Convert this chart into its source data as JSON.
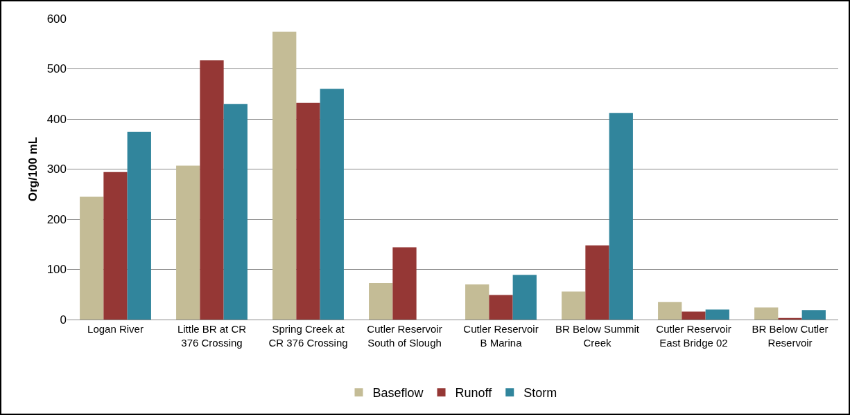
{
  "chart_data": {
    "type": "bar",
    "ylabel": "Org/100 mL",
    "categories": [
      "Logan River",
      "Little BR at CR 376 Crossing",
      "Spring Creek at CR 376 Crossing",
      "Cutler Reservoir South of Slough",
      "Cutler Reservoir B Marina",
      "BR Below Summit Creek",
      "Cutler Reservoir East Bridge 02",
      "BR Below Cutler Reservoir"
    ],
    "series": [
      {
        "name": "Baseflow",
        "color": "#c4bc96",
        "values": [
          245,
          307,
          574,
          73,
          70,
          56,
          35,
          24
        ]
      },
      {
        "name": "Runoff",
        "color": "#953735",
        "values": [
          294,
          517,
          432,
          144,
          49,
          148,
          16,
          3
        ]
      },
      {
        "name": "Storm",
        "color": "#31859c",
        "values": [
          374,
          430,
          460,
          null,
          89,
          412,
          20,
          19
        ]
      }
    ],
    "ylim": [
      0,
      600
    ],
    "yticks": [
      0,
      100,
      200,
      300,
      400,
      500,
      600
    ],
    "grid": "y",
    "legend": "bottom"
  }
}
